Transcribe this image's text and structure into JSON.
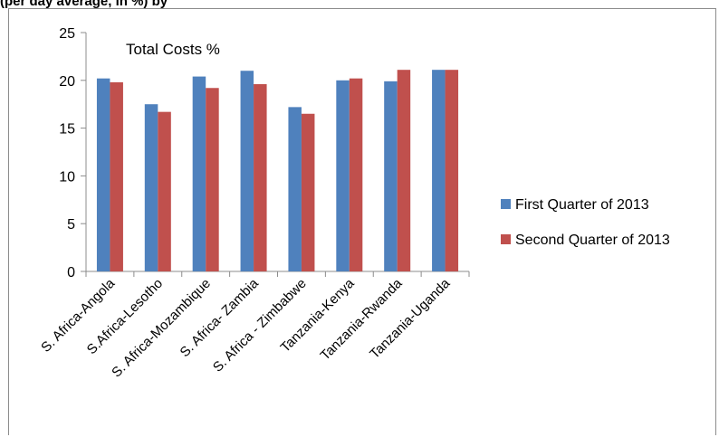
{
  "header": {
    "title": "(per day average, in %) by"
  },
  "chart_data": {
    "type": "bar",
    "title": "",
    "annotation": "Total Costs %",
    "xlabel": "",
    "ylabel": "",
    "ylim": [
      0,
      25
    ],
    "yticks": [
      "0",
      "5",
      "10",
      "15",
      "20",
      "25"
    ],
    "grid": false,
    "legend_position": "right",
    "categories": [
      "S. Africa-Angola",
      "S.Africa-Lesotho",
      "S. Africa-Mozambique",
      "S. Africa- Zambia",
      "S. Africa - Zimbabwe",
      "Tanzania-Kenya",
      "Tanzania-Rwanda",
      "Tanzania-Uganda"
    ],
    "series": [
      {
        "name": "First Quarter of 2013",
        "color": "#4f81bd",
        "values": [
          20.2,
          17.5,
          20.4,
          21.0,
          17.2,
          20.0,
          19.9,
          21.1
        ]
      },
      {
        "name": "Second Quarter of 2013",
        "color": "#c0504d",
        "values": [
          19.8,
          16.7,
          19.2,
          19.6,
          16.5,
          20.2,
          21.1,
          21.1
        ]
      }
    ]
  }
}
